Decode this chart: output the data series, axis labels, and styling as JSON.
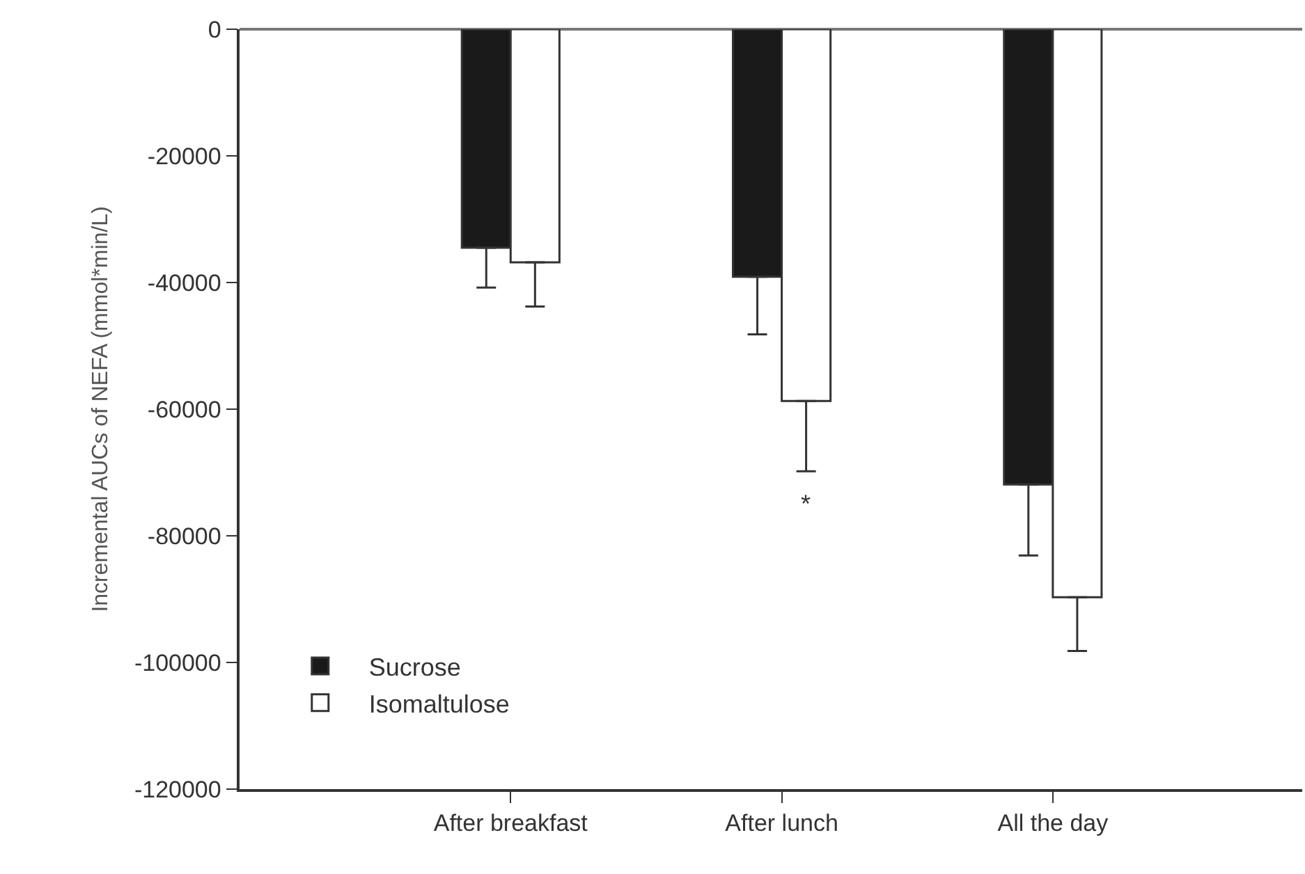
{
  "chart_data": {
    "type": "bar",
    "ylabel": "Incremental AUCs of NEFA (mmol*min/L)",
    "categories": [
      "After breakfast",
      "After lunch",
      "All the day"
    ],
    "series": [
      {
        "name": "Sucrose",
        "color": "#1a1a1a",
        "values": [
          -34500,
          -39100,
          -71900
        ],
        "errors": [
          [
            -40800,
            -34500
          ],
          [
            -48200,
            -39100
          ],
          [
            -83100,
            -71900
          ]
        ]
      },
      {
        "name": "Isomaltulose",
        "color": "#ffffff",
        "values": [
          -36800,
          -58700,
          -89700
        ],
        "errors": [
          [
            -43800,
            -36800
          ],
          [
            -69800,
            -58700
          ],
          [
            -98200,
            -89700
          ]
        ]
      }
    ],
    "ylim": [
      -120000,
      0
    ],
    "yticks": [
      0,
      -20000,
      -40000,
      -60000,
      -80000,
      -100000,
      -120000
    ],
    "annotations": [
      "*"
    ],
    "legend": "bottom left"
  }
}
